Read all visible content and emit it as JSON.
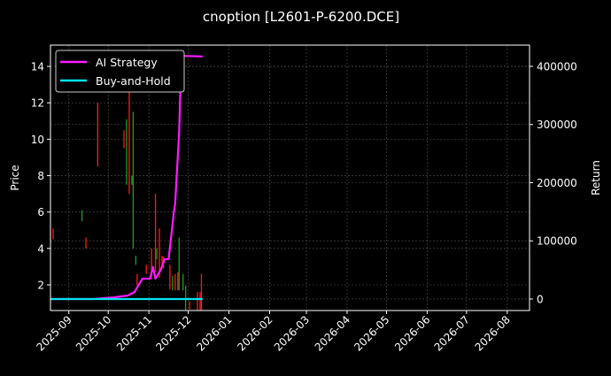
{
  "chart_data": {
    "type": "line",
    "title": "cnoption [L2601-P-6200.DCE]",
    "ylabel_left": "Price",
    "ylabel_right": "Return",
    "xlim": [
      "2025-08-18",
      "2026-08-18"
    ],
    "ylim_left": [
      0.59,
      15.17
    ],
    "ylim_right": [
      -19800,
      436500
    ],
    "x_ticks": [
      "2025-09",
      "2025-10",
      "2025-11",
      "2025-12",
      "2026-01",
      "2026-02",
      "2026-03",
      "2026-04",
      "2026-05",
      "2026-06",
      "2026-07",
      "2026-08"
    ],
    "y_ticks_left": [
      2,
      4,
      6,
      8,
      10,
      12,
      14
    ],
    "y_ticks_right": [
      0,
      100000,
      200000,
      300000,
      400000
    ],
    "grid": true,
    "legend_position": "top-left",
    "colors": {
      "background": "#000000",
      "up": "#ff1a1a",
      "down": "#1f9e1f",
      "ai": "#ff1aff",
      "bh": "#00e5ee",
      "grid": "#555555"
    },
    "candles": [
      {
        "date": "2025-08-20",
        "low": 4.5,
        "high": 5.1,
        "color": "red"
      },
      {
        "date": "2025-09-11",
        "low": 5.5,
        "high": 6.1,
        "color": "green"
      },
      {
        "date": "2025-09-14",
        "low": 4.0,
        "high": 4.6,
        "color": "red"
      },
      {
        "date": "2025-09-23",
        "low": 8.5,
        "high": 12.0,
        "color": "red"
      },
      {
        "date": "2025-10-13",
        "low": 9.5,
        "high": 10.5,
        "color": "red"
      },
      {
        "date": "2025-10-15",
        "low": 7.5,
        "high": 11.1,
        "color": "green"
      },
      {
        "date": "2025-10-17",
        "low": 7.0,
        "high": 14.0,
        "color": "red"
      },
      {
        "date": "2025-10-19",
        "low": 7.5,
        "high": 8.0,
        "color": "green"
      },
      {
        "date": "2025-10-20",
        "low": 4.0,
        "high": 11.5,
        "color": "green"
      },
      {
        "date": "2025-10-22",
        "low": 3.1,
        "high": 3.6,
        "color": "green"
      },
      {
        "date": "2025-10-23",
        "low": 2.0,
        "high": 2.6,
        "color": "red"
      },
      {
        "date": "2025-10-30",
        "low": 2.6,
        "high": 3.1,
        "color": "red"
      },
      {
        "date": "2025-11-03",
        "low": 2.4,
        "high": 4.0,
        "color": "red"
      },
      {
        "date": "2025-11-06",
        "low": 2.7,
        "high": 7.0,
        "color": "red"
      },
      {
        "date": "2025-11-07",
        "low": 3.4,
        "high": 4.0,
        "color": "green"
      },
      {
        "date": "2025-11-09",
        "low": 2.4,
        "high": 5.1,
        "color": "red"
      },
      {
        "date": "2025-11-11",
        "low": 3.0,
        "high": 3.6,
        "color": "red"
      },
      {
        "date": "2025-11-12",
        "low": 2.9,
        "high": 3.55,
        "color": "red"
      },
      {
        "date": "2025-11-17",
        "low": 1.76,
        "high": 3.1,
        "color": "red"
      },
      {
        "date": "2025-11-19",
        "low": 1.7,
        "high": 2.5,
        "color": "green"
      },
      {
        "date": "2025-11-21",
        "low": 1.7,
        "high": 2.6,
        "color": "red"
      },
      {
        "date": "2025-11-23",
        "low": 1.7,
        "high": 2.7,
        "color": "red"
      },
      {
        "date": "2025-11-24",
        "low": 1.7,
        "high": 4.6,
        "color": "green"
      },
      {
        "date": "2025-11-27",
        "low": 1.7,
        "high": 2.6,
        "color": "green"
      },
      {
        "date": "2025-11-29",
        "low": 0.6,
        "high": 1.95,
        "color": "green"
      },
      {
        "date": "2025-12-02",
        "low": 0.65,
        "high": 1.1,
        "color": "red"
      },
      {
        "date": "2025-12-08",
        "low": 0.6,
        "high": 1.6,
        "color": "red"
      },
      {
        "date": "2025-12-10",
        "low": 0.6,
        "high": 1.6,
        "color": "red"
      },
      {
        "date": "2025-12-11",
        "low": 0.6,
        "high": 2.6,
        "color": "red"
      }
    ],
    "series": [
      {
        "name": "AI Strategy",
        "axis": "right",
        "points": [
          [
            "2025-08-18",
            0
          ],
          [
            "2025-09-20",
            0
          ],
          [
            "2025-10-06",
            3000
          ],
          [
            "2025-10-16",
            6000
          ],
          [
            "2025-10-21",
            12000
          ],
          [
            "2025-10-27",
            35000
          ],
          [
            "2025-11-02",
            35000
          ],
          [
            "2025-11-04",
            55000
          ],
          [
            "2025-11-06",
            35000
          ],
          [
            "2025-11-08",
            42600
          ],
          [
            "2025-11-10",
            50000
          ],
          [
            "2025-11-13",
            68400
          ],
          [
            "2025-11-16",
            68400
          ],
          [
            "2025-11-17",
            88200
          ],
          [
            "2025-11-20",
            149000
          ],
          [
            "2025-11-21",
            164000
          ],
          [
            "2025-11-22",
            205000
          ],
          [
            "2025-11-24",
            286000
          ],
          [
            "2025-11-25",
            362000
          ],
          [
            "2025-11-27",
            418000
          ],
          [
            "2025-12-12",
            417000
          ]
        ]
      },
      {
        "name": "Buy-and-Hold",
        "axis": "right",
        "points": [
          [
            "2025-08-18",
            0
          ],
          [
            "2025-12-12",
            0
          ]
        ]
      }
    ]
  }
}
